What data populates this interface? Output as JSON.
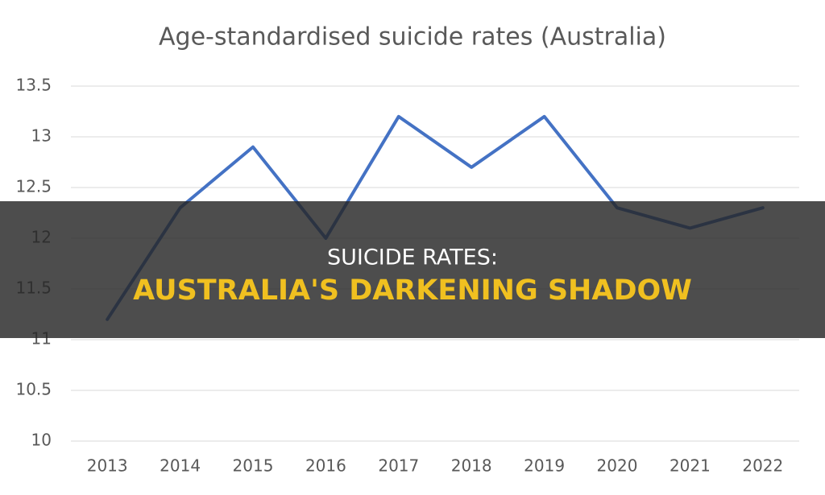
{
  "chart_data": {
    "type": "line",
    "title": "Age-standardised suicide rates (Australia)",
    "categories": [
      "2013",
      "2014",
      "2015",
      "2016",
      "2017",
      "2018",
      "2019",
      "2020",
      "2021",
      "2022"
    ],
    "series": [
      {
        "name": "Suicide rate",
        "color": "#4472c4",
        "values": [
          11.2,
          12.3,
          12.9,
          12.0,
          13.2,
          12.7,
          13.2,
          12.3,
          12.1,
          12.3
        ]
      }
    ],
    "ylim": [
      10,
      13.5
    ],
    "yticks": [
      10,
      10.5,
      11,
      11.5,
      12,
      12.5,
      13,
      13.5
    ],
    "grid": true
  },
  "banner": {
    "title": "SUICIDE RATES:",
    "subtitle": "AUSTRALIA'S DARKENING SHADOW"
  }
}
